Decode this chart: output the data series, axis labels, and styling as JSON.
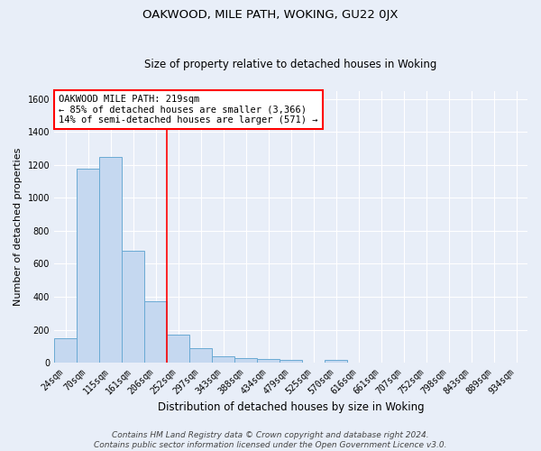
{
  "title": "OAKWOOD, MILE PATH, WOKING, GU22 0JX",
  "subtitle": "Size of property relative to detached houses in Woking",
  "xlabel": "Distribution of detached houses by size in Woking",
  "ylabel": "Number of detached properties",
  "bar_labels": [
    "24sqm",
    "70sqm",
    "115sqm",
    "161sqm",
    "206sqm",
    "252sqm",
    "297sqm",
    "343sqm",
    "388sqm",
    "434sqm",
    "479sqm",
    "525sqm",
    "570sqm",
    "616sqm",
    "661sqm",
    "707sqm",
    "752sqm",
    "798sqm",
    "843sqm",
    "889sqm",
    "934sqm"
  ],
  "bar_values": [
    150,
    1175,
    1250,
    680,
    375,
    170,
    90,
    38,
    28,
    20,
    15,
    0,
    15,
    0,
    0,
    0,
    0,
    0,
    0,
    0,
    0
  ],
  "bar_color": "#c5d8f0",
  "bar_edge_color": "#6aaad4",
  "vline_x": 4.5,
  "vline_color": "red",
  "vline_linewidth": 1.2,
  "annotation_text": "OAKWOOD MILE PATH: 219sqm\n← 85% of detached houses are smaller (3,366)\n14% of semi-detached houses are larger (571) →",
  "annotation_box_color": "white",
  "annotation_box_edge": "red",
  "ylim": [
    0,
    1650
  ],
  "yticks": [
    0,
    200,
    400,
    600,
    800,
    1000,
    1200,
    1400,
    1600
  ],
  "bg_color": "#e8eef8",
  "grid_color": "white",
  "footer": "Contains HM Land Registry data © Crown copyright and database right 2024.\nContains public sector information licensed under the Open Government Licence v3.0.",
  "title_fontsize": 9.5,
  "subtitle_fontsize": 8.5,
  "xlabel_fontsize": 8.5,
  "ylabel_fontsize": 8,
  "tick_fontsize": 7,
  "annotation_fontsize": 7.5,
  "footer_fontsize": 6.5
}
